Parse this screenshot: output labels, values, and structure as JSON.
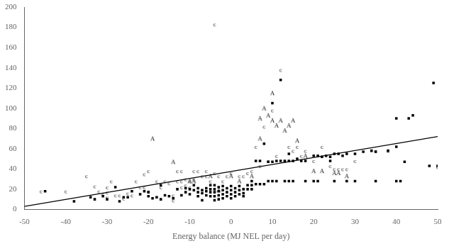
{
  "chart_data": {
    "type": "scatter",
    "xlabel": "Energy balance (MJ NEL per day)",
    "xlim": [
      -50,
      50
    ],
    "ylim": [
      0,
      200
    ],
    "xticks": [
      -50,
      -40,
      -30,
      -20,
      -10,
      0,
      10,
      20,
      30,
      40,
      50
    ],
    "yticks": [
      0,
      20,
      40,
      60,
      80,
      100,
      120,
      140,
      160,
      180,
      200
    ],
    "grid": false,
    "series": [
      {
        "type": "line",
        "line_style": "solid",
        "color": "#000000",
        "x": [
          -50,
          50
        ],
        "values": [
          3,
          72
        ]
      },
      {
        "type": "scatter",
        "marker": "square",
        "color": "#000000",
        "x": [
          -45,
          -38,
          -34,
          -33,
          -31,
          -30,
          -28,
          -27,
          -26,
          -25,
          -24,
          -22,
          -21,
          -20,
          -20,
          -19,
          -18,
          -17,
          -17,
          -16,
          -15,
          -14,
          -13,
          -12,
          -11,
          -11,
          -10,
          -10,
          -9,
          -9,
          -8,
          -8,
          -8,
          -7,
          -7,
          -7,
          -6,
          -6,
          -6,
          -5,
          -5,
          -5,
          -5,
          -4,
          -4,
          -4,
          -4,
          -4,
          -3,
          -3,
          -3,
          -3,
          -2,
          -2,
          -2,
          -2,
          -1,
          -1,
          -1,
          0,
          0,
          0,
          0,
          1,
          1,
          1,
          2,
          2,
          2,
          3,
          3,
          3,
          4,
          4,
          5,
          5,
          5,
          6,
          6,
          7,
          7,
          8,
          8,
          9,
          9,
          10,
          10,
          10,
          11,
          11,
          12,
          12,
          13,
          13,
          14,
          14,
          14,
          15,
          15,
          16,
          17,
          18,
          18,
          20,
          20,
          21,
          21,
          22,
          23,
          24,
          24,
          25,
          25,
          26,
          27,
          28,
          28,
          30,
          30,
          32,
          34,
          35,
          35,
          38,
          40,
          40,
          40,
          41,
          42,
          43,
          44,
          48,
          49,
          50
        ],
        "values": [
          18,
          8,
          12,
          10,
          13,
          10,
          22,
          8,
          12,
          12,
          18,
          15,
          18,
          17,
          13,
          11,
          12,
          10,
          24,
          14,
          13,
          11,
          20,
          14,
          21,
          17,
          20,
          15,
          24,
          19,
          21,
          17,
          13,
          19,
          16,
          9,
          21,
          18,
          14,
          24,
          20,
          17,
          13,
          24,
          20,
          17,
          13,
          9,
          22,
          18,
          14,
          10,
          23,
          19,
          15,
          11,
          21,
          17,
          13,
          23,
          19,
          15,
          11,
          21,
          17,
          13,
          23,
          19,
          15,
          20,
          16,
          13,
          24,
          20,
          24,
          20,
          28,
          48,
          25,
          48,
          25,
          25,
          65,
          47,
          28,
          47,
          28,
          105,
          48,
          28,
          48,
          128,
          48,
          28,
          48,
          55,
          28,
          48,
          28,
          50,
          48,
          48,
          28,
          53,
          28,
          53,
          28,
          52,
          53,
          52,
          48,
          55,
          28,
          55,
          53,
          55,
          28,
          55,
          28,
          57,
          58,
          57,
          28,
          58,
          62,
          90,
          28,
          28,
          47,
          90,
          93,
          43,
          125,
          43
        ]
      },
      {
        "type": "scatter",
        "marker": "A",
        "color": "#000000",
        "x": [
          -19,
          -14,
          -10,
          -9,
          -5,
          -3,
          0,
          2,
          5,
          7,
          7,
          8,
          9,
          10,
          10,
          11,
          12,
          13,
          14,
          15,
          16,
          18,
          20,
          22,
          25,
          26,
          28
        ],
        "values": [
          70,
          47,
          28,
          28,
          33,
          19,
          33,
          28,
          33,
          70,
          90,
          100,
          93,
          88,
          115,
          83,
          88,
          78,
          83,
          88,
          68,
          53,
          38,
          38,
          36,
          36,
          33
        ]
      },
      {
        "type": "scatter",
        "marker": "c",
        "color": "#000000",
        "x": [
          -46,
          -40,
          -35,
          -33,
          -32,
          -31,
          -30,
          -30,
          -30,
          -29,
          -28,
          -27,
          -26,
          -25,
          -24,
          -23,
          -22,
          -21,
          -21,
          -20,
          -20,
          -18,
          -17,
          -16,
          -15,
          -14,
          -14,
          -13,
          -13,
          -12,
          -12,
          -12,
          -11,
          -11,
          -10,
          -10,
          -9,
          -9,
          -8,
          -7,
          -6,
          -6,
          -5,
          -4,
          -3,
          -2,
          -1,
          0,
          2,
          3,
          4,
          5,
          6,
          7,
          8,
          9,
          10,
          11,
          12,
          13,
          14,
          15,
          16,
          17,
          18,
          20,
          22,
          24,
          25,
          26,
          27,
          28,
          30,
          35,
          38,
          -4,
          50
        ],
        "values": [
          18,
          18,
          33,
          23,
          18,
          15,
          22,
          17,
          12,
          28,
          14,
          14,
          11,
          16,
          14,
          28,
          22,
          35,
          22,
          18,
          38,
          28,
          22,
          28,
          26,
          14,
          9,
          38,
          28,
          38,
          28,
          22,
          30,
          24,
          28,
          22,
          38,
          30,
          38,
          33,
          38,
          33,
          28,
          36,
          33,
          28,
          33,
          36,
          33,
          33,
          36,
          38,
          62,
          43,
          82,
          48,
          98,
          53,
          138,
          48,
          62,
          58,
          62,
          53,
          58,
          48,
          62,
          43,
          40,
          40,
          40,
          40,
          48,
          58,
          58,
          183,
          42
        ]
      }
    ]
  }
}
